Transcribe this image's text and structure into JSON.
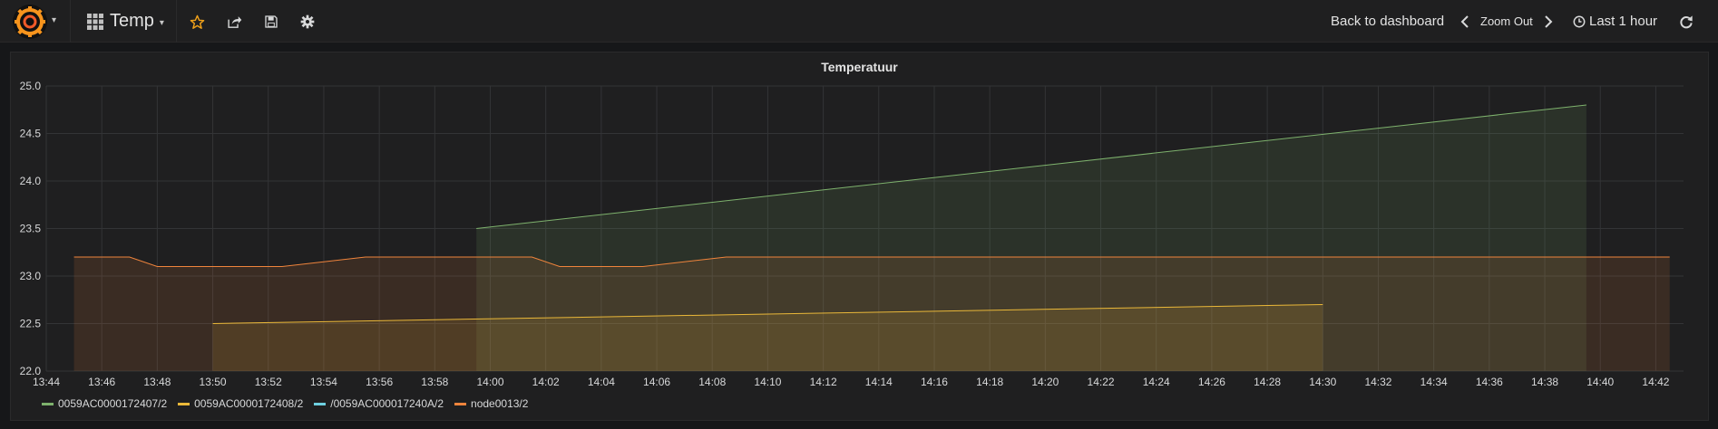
{
  "navbar": {
    "dashboard_title": "Temp",
    "back_label": "Back to dashboard",
    "zoom_label": "Zoom Out",
    "time_range_label": "Last 1 hour"
  },
  "panel": {
    "title": "Temperatuur"
  },
  "colors": {
    "green": "#7eb26d",
    "yellow": "#eab839",
    "cyan": "#6ed0e0",
    "orange": "#ef843c",
    "star": "#f2a21a"
  },
  "chart_data": {
    "type": "area",
    "title": "Temperatuur",
    "xlabel": "",
    "ylabel": "",
    "ylim": [
      22.0,
      25.0
    ],
    "xlim": [
      "13:44",
      "14:43"
    ],
    "y_ticks": [
      "25.0",
      "24.5",
      "24.0",
      "23.5",
      "23.0",
      "22.5",
      "22.0"
    ],
    "x_ticks": [
      "13:44",
      "13:46",
      "13:48",
      "13:50",
      "13:52",
      "13:54",
      "13:56",
      "13:58",
      "14:00",
      "14:02",
      "14:04",
      "14:06",
      "14:08",
      "14:10",
      "14:12",
      "14:14",
      "14:16",
      "14:18",
      "14:20",
      "14:22",
      "14:24",
      "14:26",
      "14:28",
      "14:30",
      "14:32",
      "14:34",
      "14:36",
      "14:38",
      "14:40",
      "14:42"
    ],
    "grid": true,
    "legend_position": "bottom-left",
    "series": [
      {
        "name": "0059AC0000172407/2",
        "color": "#7eb26d",
        "points": [
          [
            "13:59.5",
            23.5
          ],
          [
            "14:39.5",
            24.8
          ]
        ]
      },
      {
        "name": "0059AC0000172408/2",
        "color": "#eab839",
        "points": [
          [
            "13:50",
            22.5
          ],
          [
            "14:30",
            22.7
          ]
        ]
      },
      {
        "name": "/0059AC000017240A/2",
        "color": "#6ed0e0",
        "points": []
      },
      {
        "name": "node0013/2",
        "color": "#ef843c",
        "points": [
          [
            "13:45",
            23.2
          ],
          [
            "13:47",
            23.2
          ],
          [
            "13:48",
            23.1
          ],
          [
            "13:52.5",
            23.1
          ],
          [
            "13:55.5",
            23.2
          ],
          [
            "14:01.5",
            23.2
          ],
          [
            "14:02.5",
            23.1
          ],
          [
            "14:05.5",
            23.1
          ],
          [
            "14:08.5",
            23.2
          ],
          [
            "14:42.5",
            23.2
          ]
        ]
      }
    ]
  }
}
